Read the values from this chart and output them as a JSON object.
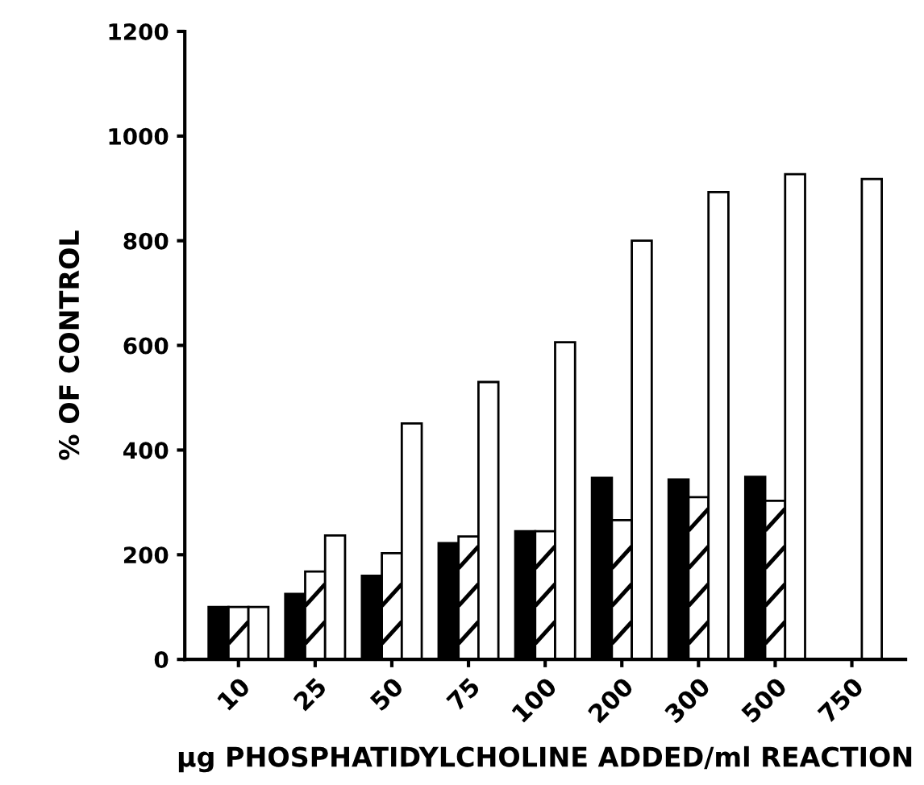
{
  "chart_data": {
    "type": "bar",
    "xlabel": "μg PHOSPHATIDYLCHOLINE ADDED/ml REACTION",
    "ylabel": "% OF CONTROL",
    "categories": [
      "10",
      "25",
      "50",
      "75",
      "100",
      "200",
      "300",
      "500",
      "750"
    ],
    "series": [
      {
        "color": "#000000",
        "values": [
          100,
          125,
          160,
          222,
          245,
          347,
          344,
          349,
          null
        ]
      },
      {
        "color": "#ffffff",
        "values": [
          100,
          168,
          203,
          235,
          245,
          266,
          310,
          303,
          null
        ]
      },
      {
        "color": "#ffffff",
        "values": [
          100,
          237,
          451,
          530,
          606,
          800,
          893,
          927,
          918
        ]
      }
    ],
    "ylim": [
      0,
      1200
    ],
    "yticks": [
      0,
      200,
      400,
      600,
      800,
      1000,
      1200
    ],
    "grid": false,
    "legend": false
  }
}
